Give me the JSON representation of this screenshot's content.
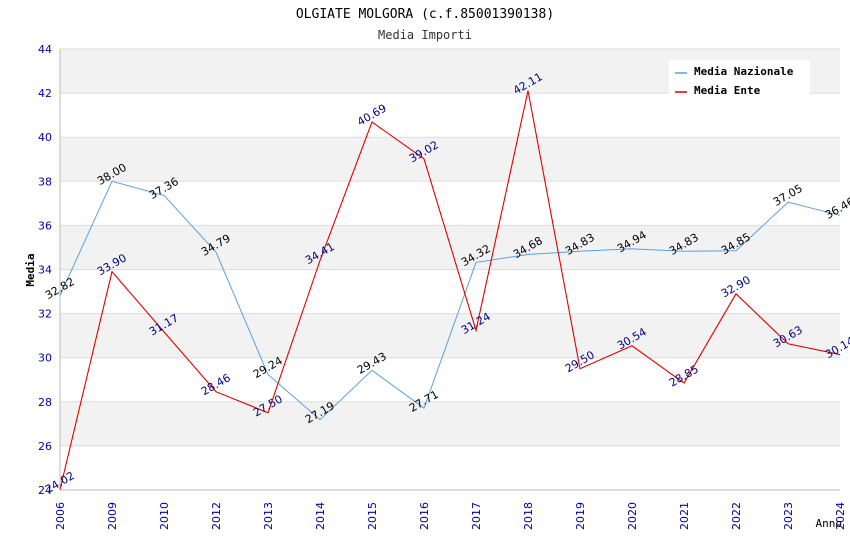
{
  "chart_data": {
    "type": "line",
    "title": "OLGIATE MOLGORA (c.f.85001390138)",
    "subtitle": "Media Importi",
    "xlabel": "Anno",
    "ylabel": "Media",
    "ylim": [
      24,
      44
    ],
    "yticks": [
      24,
      26,
      28,
      30,
      32,
      34,
      36,
      38,
      40,
      42,
      44
    ],
    "categories": [
      "2006",
      "2009",
      "2010",
      "2012",
      "2013",
      "2014",
      "2015",
      "2016",
      "2017",
      "2018",
      "2019",
      "2020",
      "2021",
      "2022",
      "2023",
      "2024"
    ],
    "grid": "horizontal, alternating bands",
    "legend_position": "top-right",
    "series": [
      {
        "name": "Media Nazionale",
        "color": "#5aa0e0",
        "values": [
          32.82,
          38.0,
          37.36,
          34.79,
          29.24,
          27.19,
          29.43,
          27.71,
          34.32,
          34.68,
          34.83,
          34.94,
          34.83,
          34.85,
          37.05,
          36.46
        ],
        "labels": [
          "32.82",
          "38.00",
          "37.36",
          "34.79",
          "29.24",
          "27.19",
          "29.43",
          "27.71",
          "34.32",
          "34.68",
          "34.83",
          "34.94",
          "34.83",
          "34.85",
          "37.05",
          "36.46"
        ]
      },
      {
        "name": "Media Ente",
        "color": "#e00000",
        "values": [
          24.02,
          33.9,
          31.17,
          28.46,
          27.5,
          34.41,
          40.69,
          39.02,
          31.24,
          42.11,
          29.5,
          30.54,
          28.85,
          32.9,
          30.63,
          30.14
        ],
        "labels": [
          "24.02",
          "33.90",
          "31.17",
          "28.46",
          "27.50",
          "34.41",
          "40.69",
          "39.02",
          "31.24",
          "42.11",
          "29.50",
          "30.54",
          "28.85",
          "32.90",
          "30.63",
          "30.14"
        ]
      }
    ]
  }
}
